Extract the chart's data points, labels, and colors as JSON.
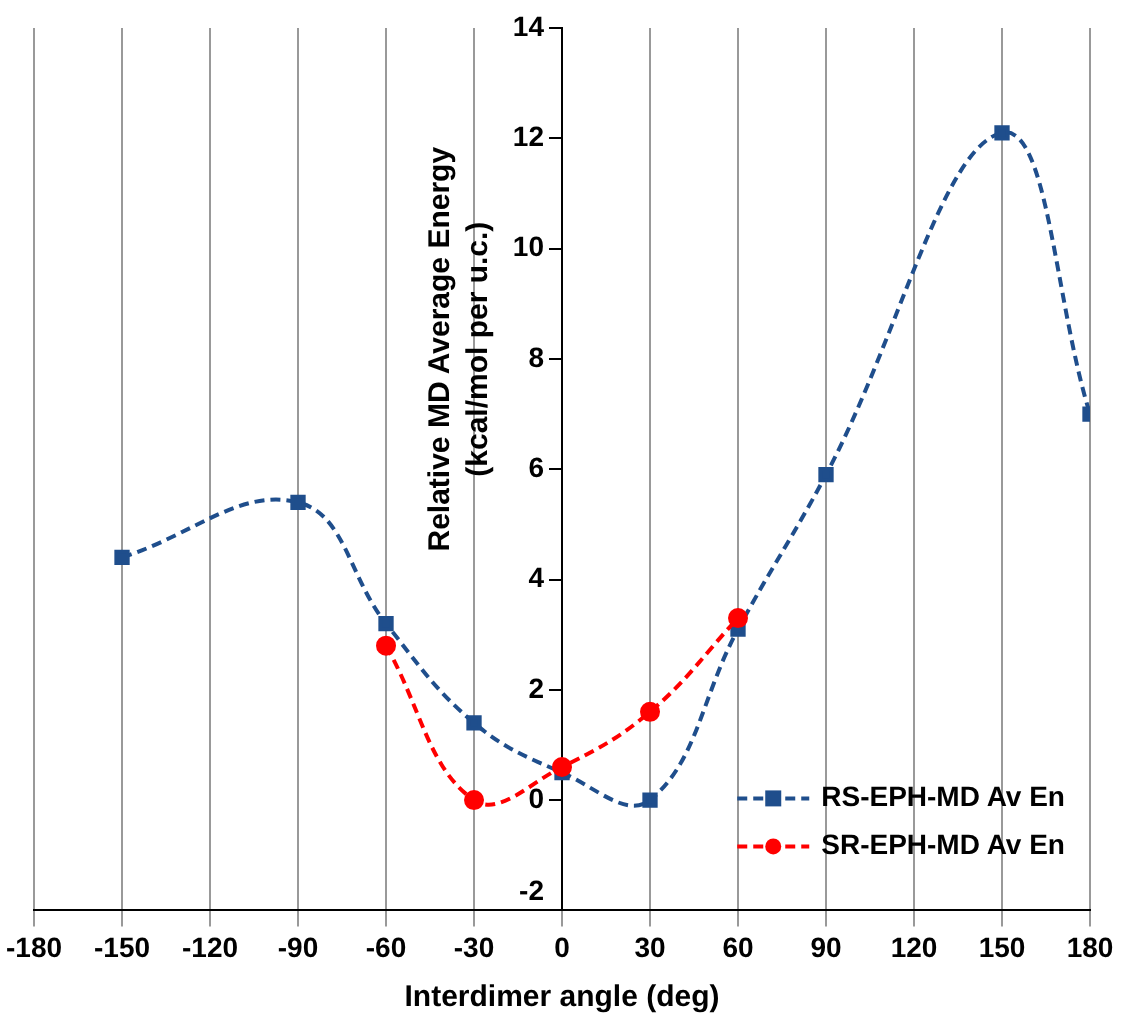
{
  "chart_data": {
    "type": "line",
    "xlabel": "Interdimer angle (deg)",
    "ylabel": "Relative MD Average Energy\n(kcal/mol per u.c.)",
    "xlim": [
      -180,
      180
    ],
    "xticks": [
      -180,
      -150,
      -120,
      -90,
      -60,
      -30,
      0,
      30,
      60,
      90,
      120,
      150,
      180
    ],
    "ylim": [
      -2,
      14
    ],
    "yticks": [
      -2,
      0,
      2,
      4,
      6,
      8,
      10,
      12,
      14
    ],
    "grid": "x",
    "legend": "bottom right",
    "line_style": "dashed",
    "series": [
      {
        "name": "RS-EPH-MD Av En",
        "color": "#1f4e8c",
        "marker": "square",
        "x": [
          -150,
          -90,
          -60,
          -30,
          0,
          30,
          60,
          90,
          150,
          180
        ],
        "values": [
          4.4,
          5.4,
          3.2,
          1.4,
          0.5,
          0.0,
          3.1,
          5.9,
          12.1,
          7.0
        ]
      },
      {
        "name": "SR-EPH-MD Av En",
        "color": "#ff0000",
        "marker": "circle",
        "x": [
          -60,
          -30,
          0,
          30,
          60
        ],
        "values": [
          2.8,
          0.0,
          0.6,
          1.6,
          3.3
        ]
      }
    ]
  }
}
